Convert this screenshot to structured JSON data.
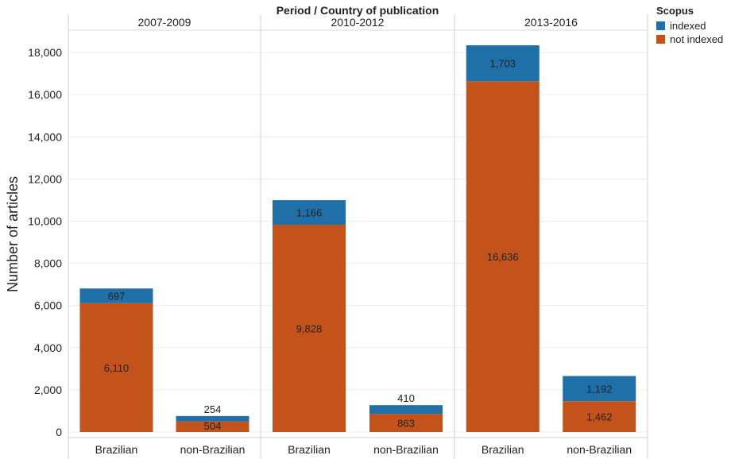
{
  "chart_data": {
    "type": "bar",
    "stacked": true,
    "title": "Period  /  Country of publication",
    "ylabel": "Number of articles",
    "ylim": [
      0,
      19000
    ],
    "yticks": [
      0,
      2000,
      4000,
      6000,
      8000,
      10000,
      12000,
      14000,
      16000,
      18000
    ],
    "ytick_labels": [
      "0",
      "2,000",
      "4,000",
      "6,000",
      "8,000",
      "10,000",
      "12,000",
      "14,000",
      "16,000",
      "18,000"
    ],
    "grid": true,
    "panels": [
      {
        "period": "2007-2009",
        "categories": [
          "Brazilian",
          "non-Brazilian"
        ],
        "series": [
          {
            "name": "not indexed",
            "values": [
              6110,
              504
            ],
            "labels": [
              "6,110",
              "504"
            ]
          },
          {
            "name": "indexed",
            "values": [
              697,
              254
            ],
            "labels": [
              "697",
              "254"
            ]
          }
        ]
      },
      {
        "period": "2010-2012",
        "categories": [
          "Brazilian",
          "non-Brazilian"
        ],
        "series": [
          {
            "name": "not indexed",
            "values": [
              9828,
              863
            ],
            "labels": [
              "9,828",
              "863"
            ]
          },
          {
            "name": "indexed",
            "values": [
              1166,
              410
            ],
            "labels": [
              "1,166",
              "410"
            ]
          }
        ]
      },
      {
        "period": "2013-2016",
        "categories": [
          "Brazilian",
          "non-Brazilian"
        ],
        "series": [
          {
            "name": "not indexed",
            "values": [
              16636,
              1462
            ],
            "labels": [
              "16,636",
              "1,462"
            ]
          },
          {
            "name": "indexed",
            "values": [
              1703,
              1192
            ],
            "labels": [
              "1,703",
              "1,192"
            ]
          }
        ]
      }
    ],
    "legend": {
      "title": "Scopus",
      "placement": "top-right",
      "items": [
        {
          "name": "indexed",
          "color": "#1f6fa8"
        },
        {
          "name": "not indexed",
          "color": "#c4531b"
        }
      ]
    }
  }
}
